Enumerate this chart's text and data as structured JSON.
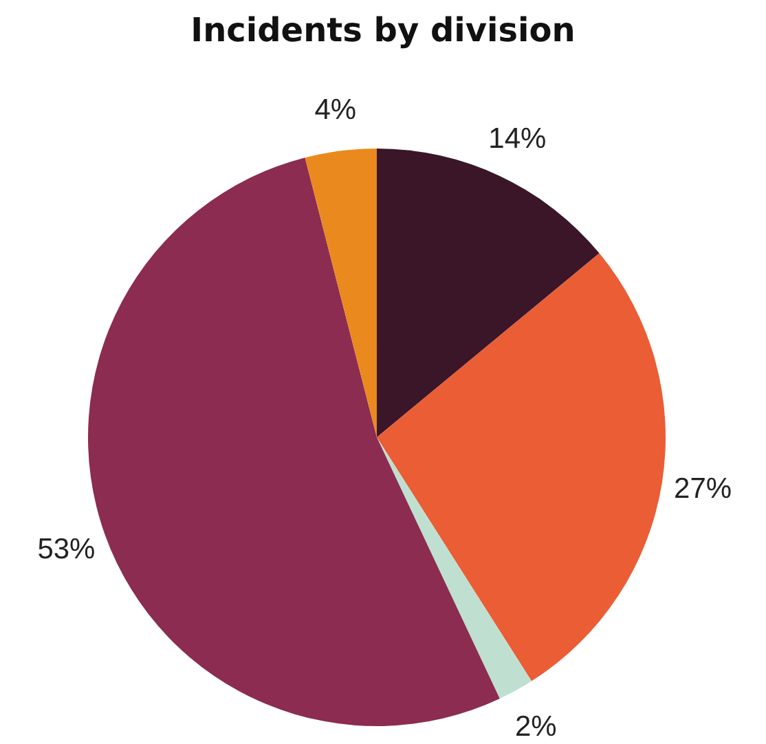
{
  "chart_data": {
    "type": "pie",
    "title": "Incidents by division",
    "categories": [
      null,
      null,
      null,
      null,
      null
    ],
    "values": [
      14,
      27,
      2,
      53,
      4
    ],
    "colors": [
      "#3a1628",
      "#ea5d35",
      "#bfe0d0",
      "#8c2c50",
      "#ea8a1e"
    ],
    "value_labels": [
      "14%",
      "27%",
      "2%",
      "53%",
      "4%"
    ]
  }
}
